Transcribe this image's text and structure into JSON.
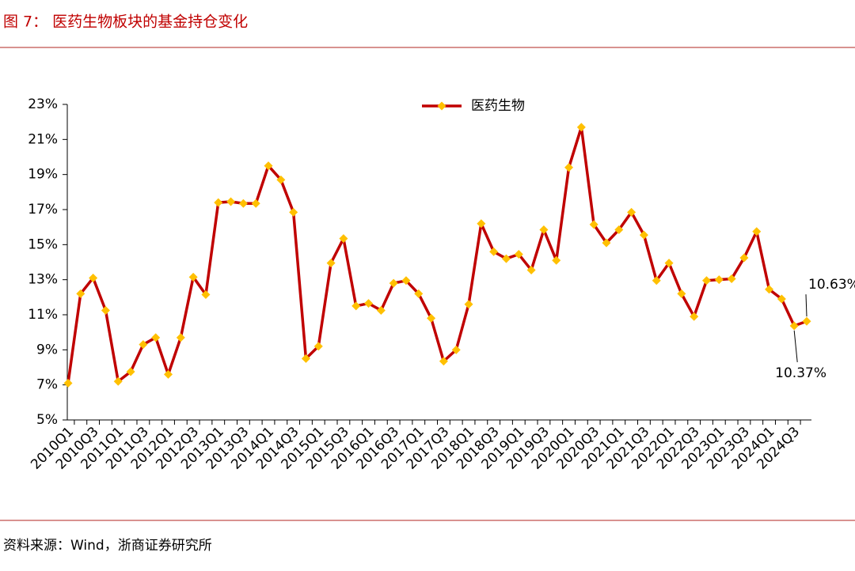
{
  "chart_data": {
    "type": "line",
    "title": "图 7：  医药生物板块的基金持仓变化",
    "source": "资料来源：Wind，浙商证券研究所",
    "categories": [
      "2010Q1",
      null,
      "2010Q3",
      null,
      "2011Q1",
      null,
      "2011Q3",
      null,
      "2012Q1",
      null,
      "2012Q3",
      null,
      "2013Q1",
      null,
      "2013Q3",
      null,
      "2014Q1",
      null,
      "2014Q3",
      null,
      "2015Q1",
      null,
      "2015Q3",
      null,
      "2016Q1",
      null,
      "2016Q3",
      null,
      "2017Q1",
      null,
      "2017Q3",
      null,
      "2018Q1",
      null,
      "2018Q3",
      null,
      "2019Q1",
      null,
      "2019Q3",
      null,
      "2020Q1",
      null,
      "2020Q3",
      null,
      "2021Q1",
      null,
      "2021Q3",
      null,
      "2022Q1",
      null,
      "2022Q3",
      null,
      "2023Q1",
      null,
      "2023Q3",
      null,
      "2024Q1",
      null,
      "2024Q3",
      null
    ],
    "series": [
      {
        "name": "医药生物",
        "color": "#c00000",
        "marker_color": "#ffc000",
        "values": [
          7.1,
          12.2,
          13.1,
          11.25,
          7.2,
          7.75,
          9.3,
          9.7,
          7.6,
          9.7,
          13.15,
          12.15,
          17.4,
          17.45,
          17.35,
          17.35,
          19.5,
          18.7,
          16.85,
          8.5,
          9.2,
          13.95,
          15.35,
          11.5,
          11.65,
          11.25,
          12.8,
          12.95,
          12.2,
          10.8,
          8.35,
          9.0,
          11.6,
          16.2,
          14.6,
          14.2,
          14.45,
          13.55,
          15.85,
          14.1,
          19.4,
          21.7,
          16.15,
          15.1,
          15.85,
          16.85,
          15.55,
          12.95,
          13.95,
          12.2,
          10.9,
          12.95,
          13.0,
          13.05,
          14.25,
          15.75,
          12.45,
          11.9,
          10.37,
          10.63
        ],
        "value_labels": [
          null,
          null,
          null,
          null,
          null,
          null,
          null,
          null,
          null,
          null,
          null,
          null,
          null,
          null,
          null,
          null,
          null,
          null,
          null,
          null,
          null,
          null,
          null,
          null,
          null,
          null,
          null,
          null,
          null,
          null,
          null,
          null,
          null,
          null,
          null,
          null,
          null,
          null,
          null,
          null,
          null,
          null,
          null,
          null,
          null,
          null,
          null,
          null,
          null,
          null,
          null,
          null,
          null,
          null,
          null,
          null,
          null,
          null,
          "10.37%",
          "10.63%"
        ]
      }
    ],
    "ylim": [
      5,
      23
    ],
    "yticks": [
      {
        "value": 5,
        "label": "5%"
      },
      {
        "value": 7,
        "label": "7%"
      },
      {
        "value": 9,
        "label": "9%"
      },
      {
        "value": 11,
        "label": "11%"
      },
      {
        "value": 13,
        "label": "13%"
      },
      {
        "value": 15,
        "label": "15%"
      },
      {
        "value": 17,
        "label": "17%"
      },
      {
        "value": 19,
        "label": "19%"
      },
      {
        "value": 21,
        "label": "21%"
      },
      {
        "value": 23,
        "label": "23%"
      }
    ],
    "grid": false,
    "legend": "top"
  }
}
